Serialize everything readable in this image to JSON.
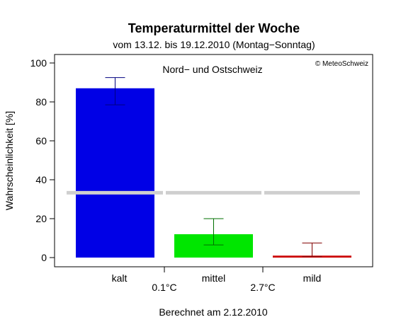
{
  "chart_data": {
    "type": "bar",
    "title": "Temperaturmittel der Woche",
    "subtitle": "vom 13.12. bis 19.12.2010 (Montag−Sonntag)",
    "region": "Nord− und Ostschweiz",
    "credit": "© MeteoSchweiz",
    "ylabel": "Wahrscheinlichkeit [%]",
    "footer": "Berechnet am 2.12.2010",
    "ylim": [
      0,
      100
    ],
    "yticks": [
      0,
      20,
      40,
      60,
      80,
      100
    ],
    "categories": [
      "kalt",
      "mittel",
      "mild"
    ],
    "thresholds": [
      "0.1°C",
      "2.7°C"
    ],
    "values": [
      87,
      12,
      1
    ],
    "error_low": [
      78.5,
      6.5,
      0.5
    ],
    "error_high": [
      92.5,
      20,
      7.5
    ],
    "reference_line": 33.3,
    "grid": false,
    "legend": "none",
    "colors": {
      "bars": [
        "#0000e6",
        "#00e600",
        "#cc0000"
      ],
      "whiskers": [
        "#000080",
        "#007000",
        "#800000"
      ],
      "reference_line": "#cfcfcf",
      "axis": "#000000"
    }
  }
}
